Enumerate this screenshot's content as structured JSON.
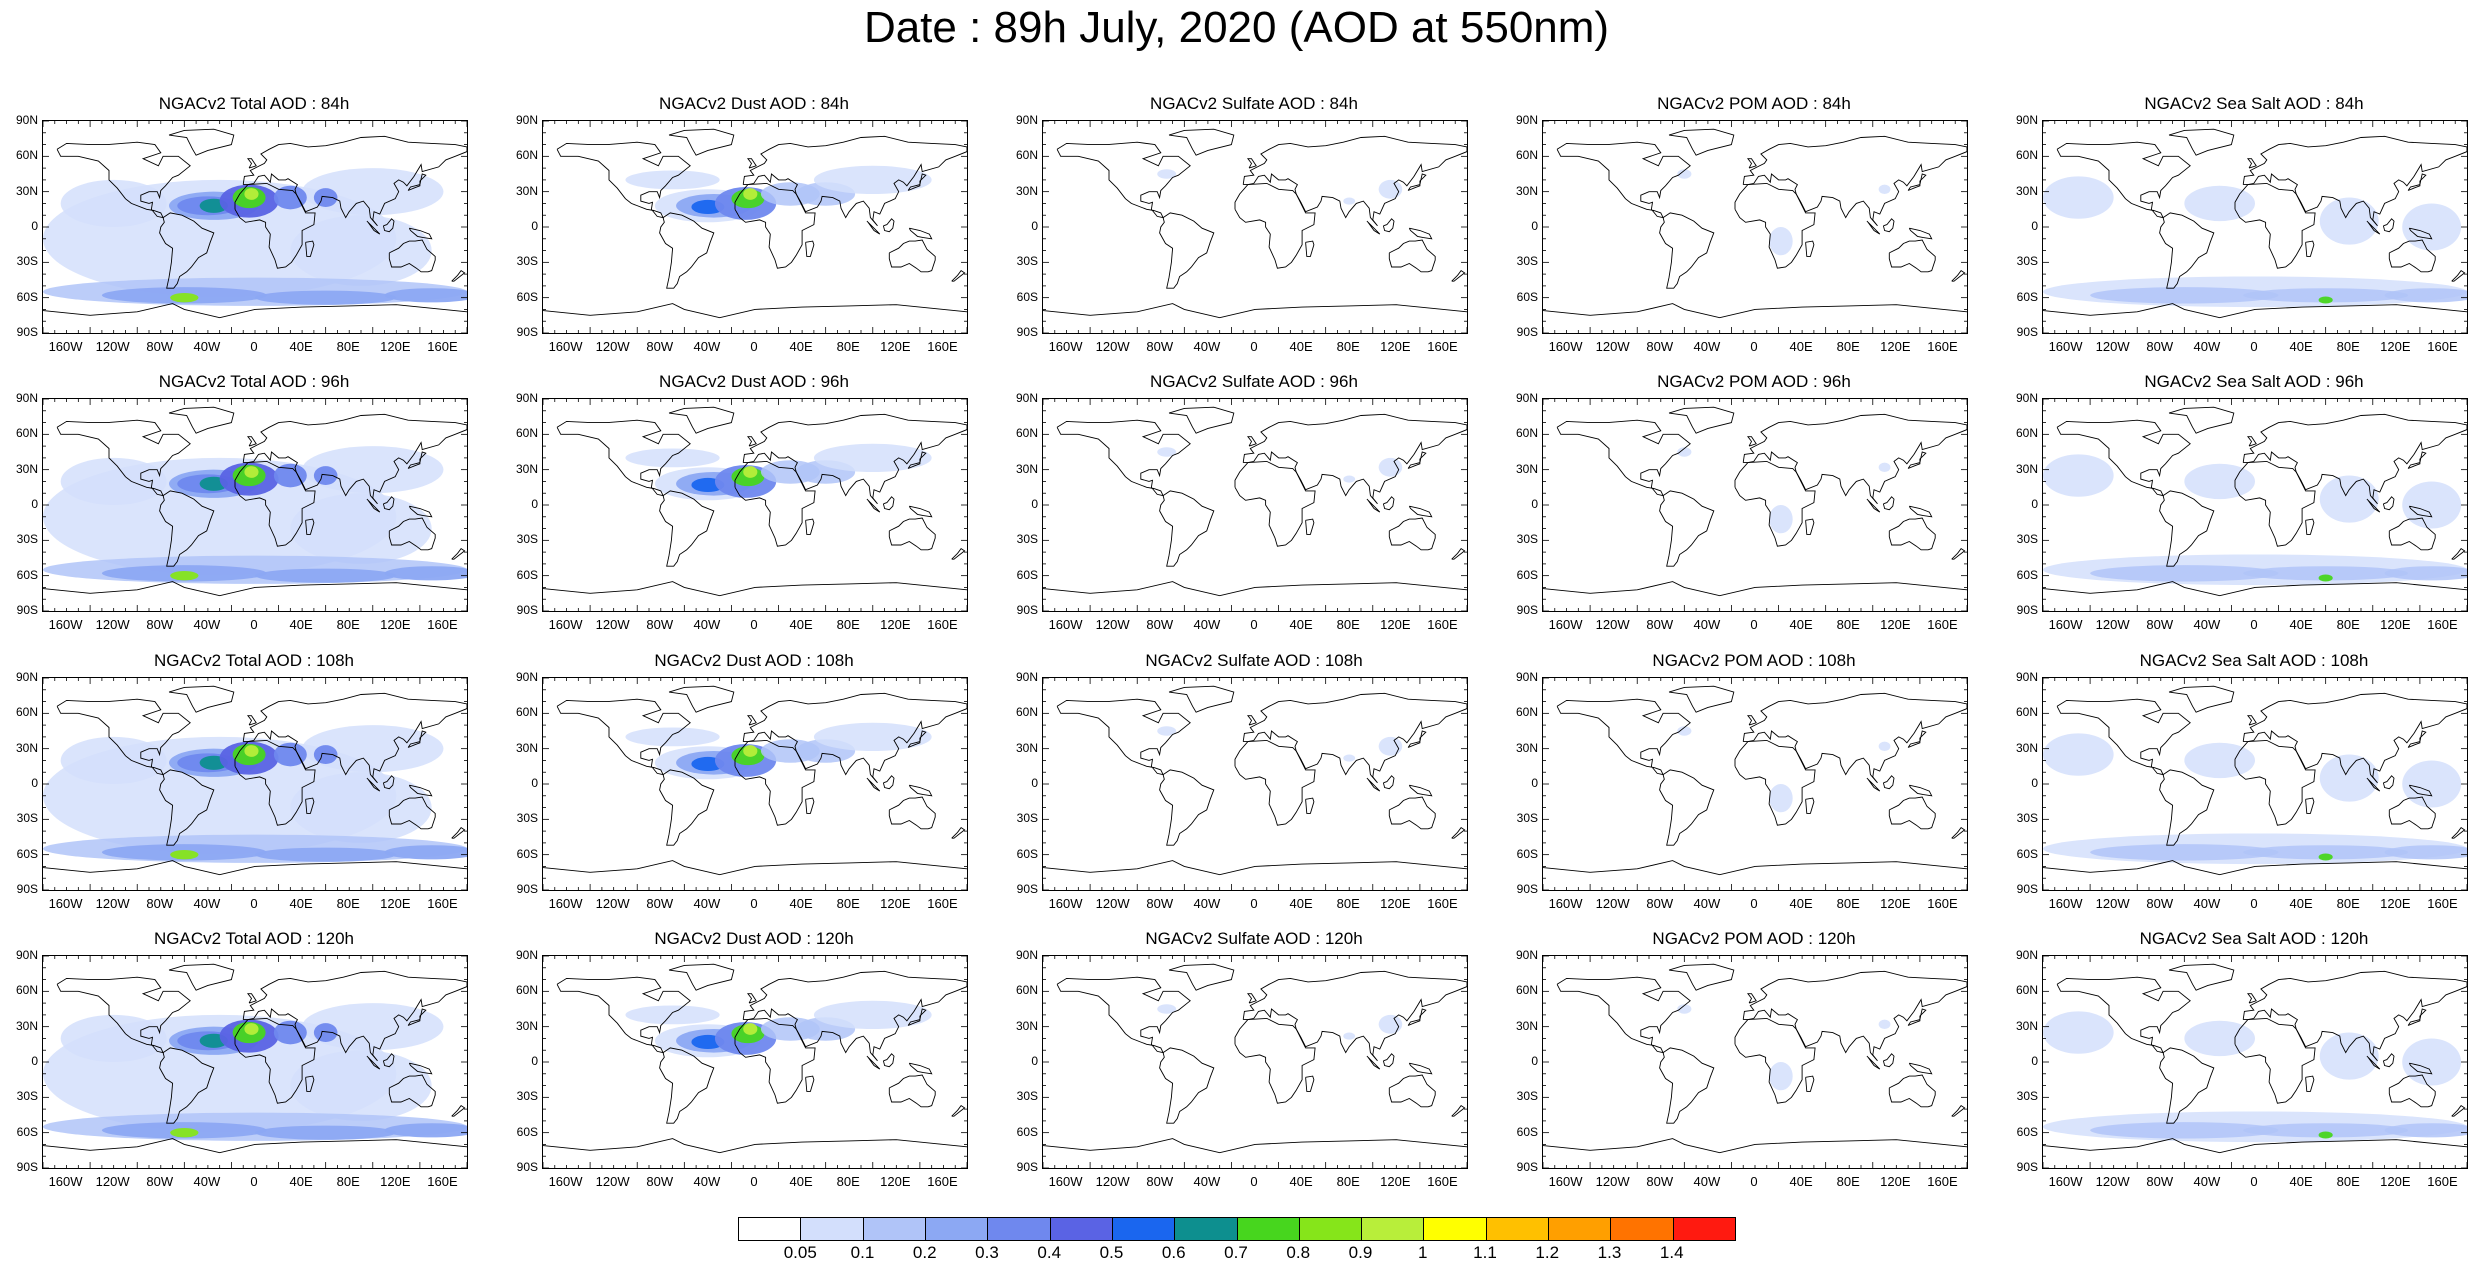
{
  "title": "Date : 89h July, 2020 (AOD at 550nm)",
  "panels": [
    {
      "title": "NGACv2 Total AOD : 84h",
      "species": "total"
    },
    {
      "title": "NGACv2 Dust AOD : 84h",
      "species": "dust"
    },
    {
      "title": "NGACv2 Sulfate AOD : 84h",
      "species": "sulfate"
    },
    {
      "title": "NGACv2 POM AOD : 84h",
      "species": "pom"
    },
    {
      "title": "NGACv2 Sea Salt AOD : 84h",
      "species": "seasalt"
    },
    {
      "title": "NGACv2 Total AOD : 96h",
      "species": "total"
    },
    {
      "title": "NGACv2 Dust AOD : 96h",
      "species": "dust"
    },
    {
      "title": "NGACv2 Sulfate AOD : 96h",
      "species": "sulfate"
    },
    {
      "title": "NGACv2 POM AOD : 96h",
      "species": "pom"
    },
    {
      "title": "NGACv2 Sea Salt AOD : 96h",
      "species": "seasalt"
    },
    {
      "title": "NGACv2 Total AOD : 108h",
      "species": "total"
    },
    {
      "title": "NGACv2 Dust AOD : 108h",
      "species": "dust"
    },
    {
      "title": "NGACv2 Sulfate AOD : 108h",
      "species": "sulfate"
    },
    {
      "title": "NGACv2 POM AOD : 108h",
      "species": "pom"
    },
    {
      "title": "NGACv2 Sea Salt AOD : 108h",
      "species": "seasalt"
    },
    {
      "title": "NGACv2 Total AOD : 120h",
      "species": "total"
    },
    {
      "title": "NGACv2 Dust AOD : 120h",
      "species": "dust"
    },
    {
      "title": "NGACv2 Sulfate AOD : 120h",
      "species": "sulfate"
    },
    {
      "title": "NGACv2 POM AOD : 120h",
      "species": "pom"
    },
    {
      "title": "NGACv2 Sea Salt  AOD : 120h",
      "species": "seasalt"
    }
  ],
  "lat_labels": [
    "90N",
    "60N",
    "30N",
    "0",
    "30S",
    "60S",
    "90S"
  ],
  "lon_labels": [
    "160W",
    "120W",
    "80W",
    "40W",
    "0",
    "40E",
    "80E",
    "120E",
    "160E"
  ],
  "colorbar": {
    "colors": [
      "#ffffff",
      "#d3dffc",
      "#b0c4f8",
      "#8ca8f3",
      "#6f88ee",
      "#5a63e4",
      "#1a66ef",
      "#0d8f8f",
      "#47d61e",
      "#86e51a",
      "#b8ee3a",
      "#ffff00",
      "#ffc000",
      "#ff9f00",
      "#ff7300",
      "#ff1a10"
    ],
    "labels": [
      "0.05",
      "0.1",
      "0.2",
      "0.3",
      "0.4",
      "0.5",
      "0.6",
      "0.7",
      "0.8",
      "0.9",
      "1",
      "1.1",
      "1.2",
      "1.3",
      "1.4"
    ]
  }
}
